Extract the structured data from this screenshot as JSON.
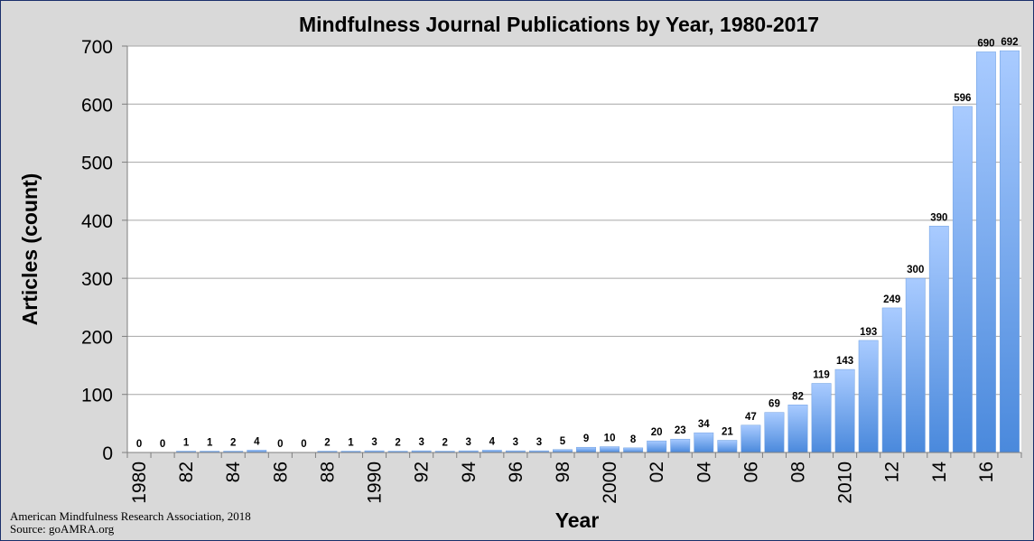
{
  "chart_data": {
    "type": "bar",
    "title": "Mindfulness Journal Publications by Year, 1980-2017",
    "xlabel": "Year",
    "ylabel": "Articles (count)",
    "ylim": [
      0,
      700
    ],
    "yticks": [
      0,
      100,
      200,
      300,
      400,
      500,
      600,
      700
    ],
    "grid": true,
    "categories": [
      "1980",
      "1981",
      "1982",
      "1983",
      "1984",
      "1985",
      "1986",
      "1987",
      "1988",
      "1989",
      "1990",
      "1991",
      "1992",
      "1993",
      "1994",
      "1995",
      "1996",
      "1997",
      "1998",
      "1999",
      "2000",
      "2001",
      "2002",
      "2003",
      "2004",
      "2005",
      "2006",
      "2007",
      "2008",
      "2009",
      "2010",
      "2011",
      "2012",
      "2013",
      "2014",
      "2015",
      "2016",
      "2017"
    ],
    "tick_labels": [
      "1980",
      "",
      "82",
      "",
      "84",
      "",
      "86",
      "",
      "88",
      "",
      "1990",
      "",
      "92",
      "",
      "94",
      "",
      "96",
      "",
      "98",
      "",
      "2000",
      "",
      "02",
      "",
      "04",
      "",
      "06",
      "",
      "08",
      "",
      "2010",
      "",
      "12",
      "",
      "14",
      "",
      "16",
      ""
    ],
    "values": [
      0,
      0,
      1,
      1,
      2,
      4,
      0,
      0,
      2,
      1,
      3,
      2,
      3,
      2,
      3,
      4,
      3,
      3,
      5,
      9,
      10,
      8,
      20,
      23,
      34,
      21,
      47,
      69,
      82,
      119,
      143,
      193,
      249,
      300,
      390,
      596,
      690,
      692
    ],
    "bar_color": "#4f8fe0"
  },
  "credits": {
    "line1": "American Mindfulness Research Association, 2018",
    "line2": "Source: goAMRA.org"
  }
}
